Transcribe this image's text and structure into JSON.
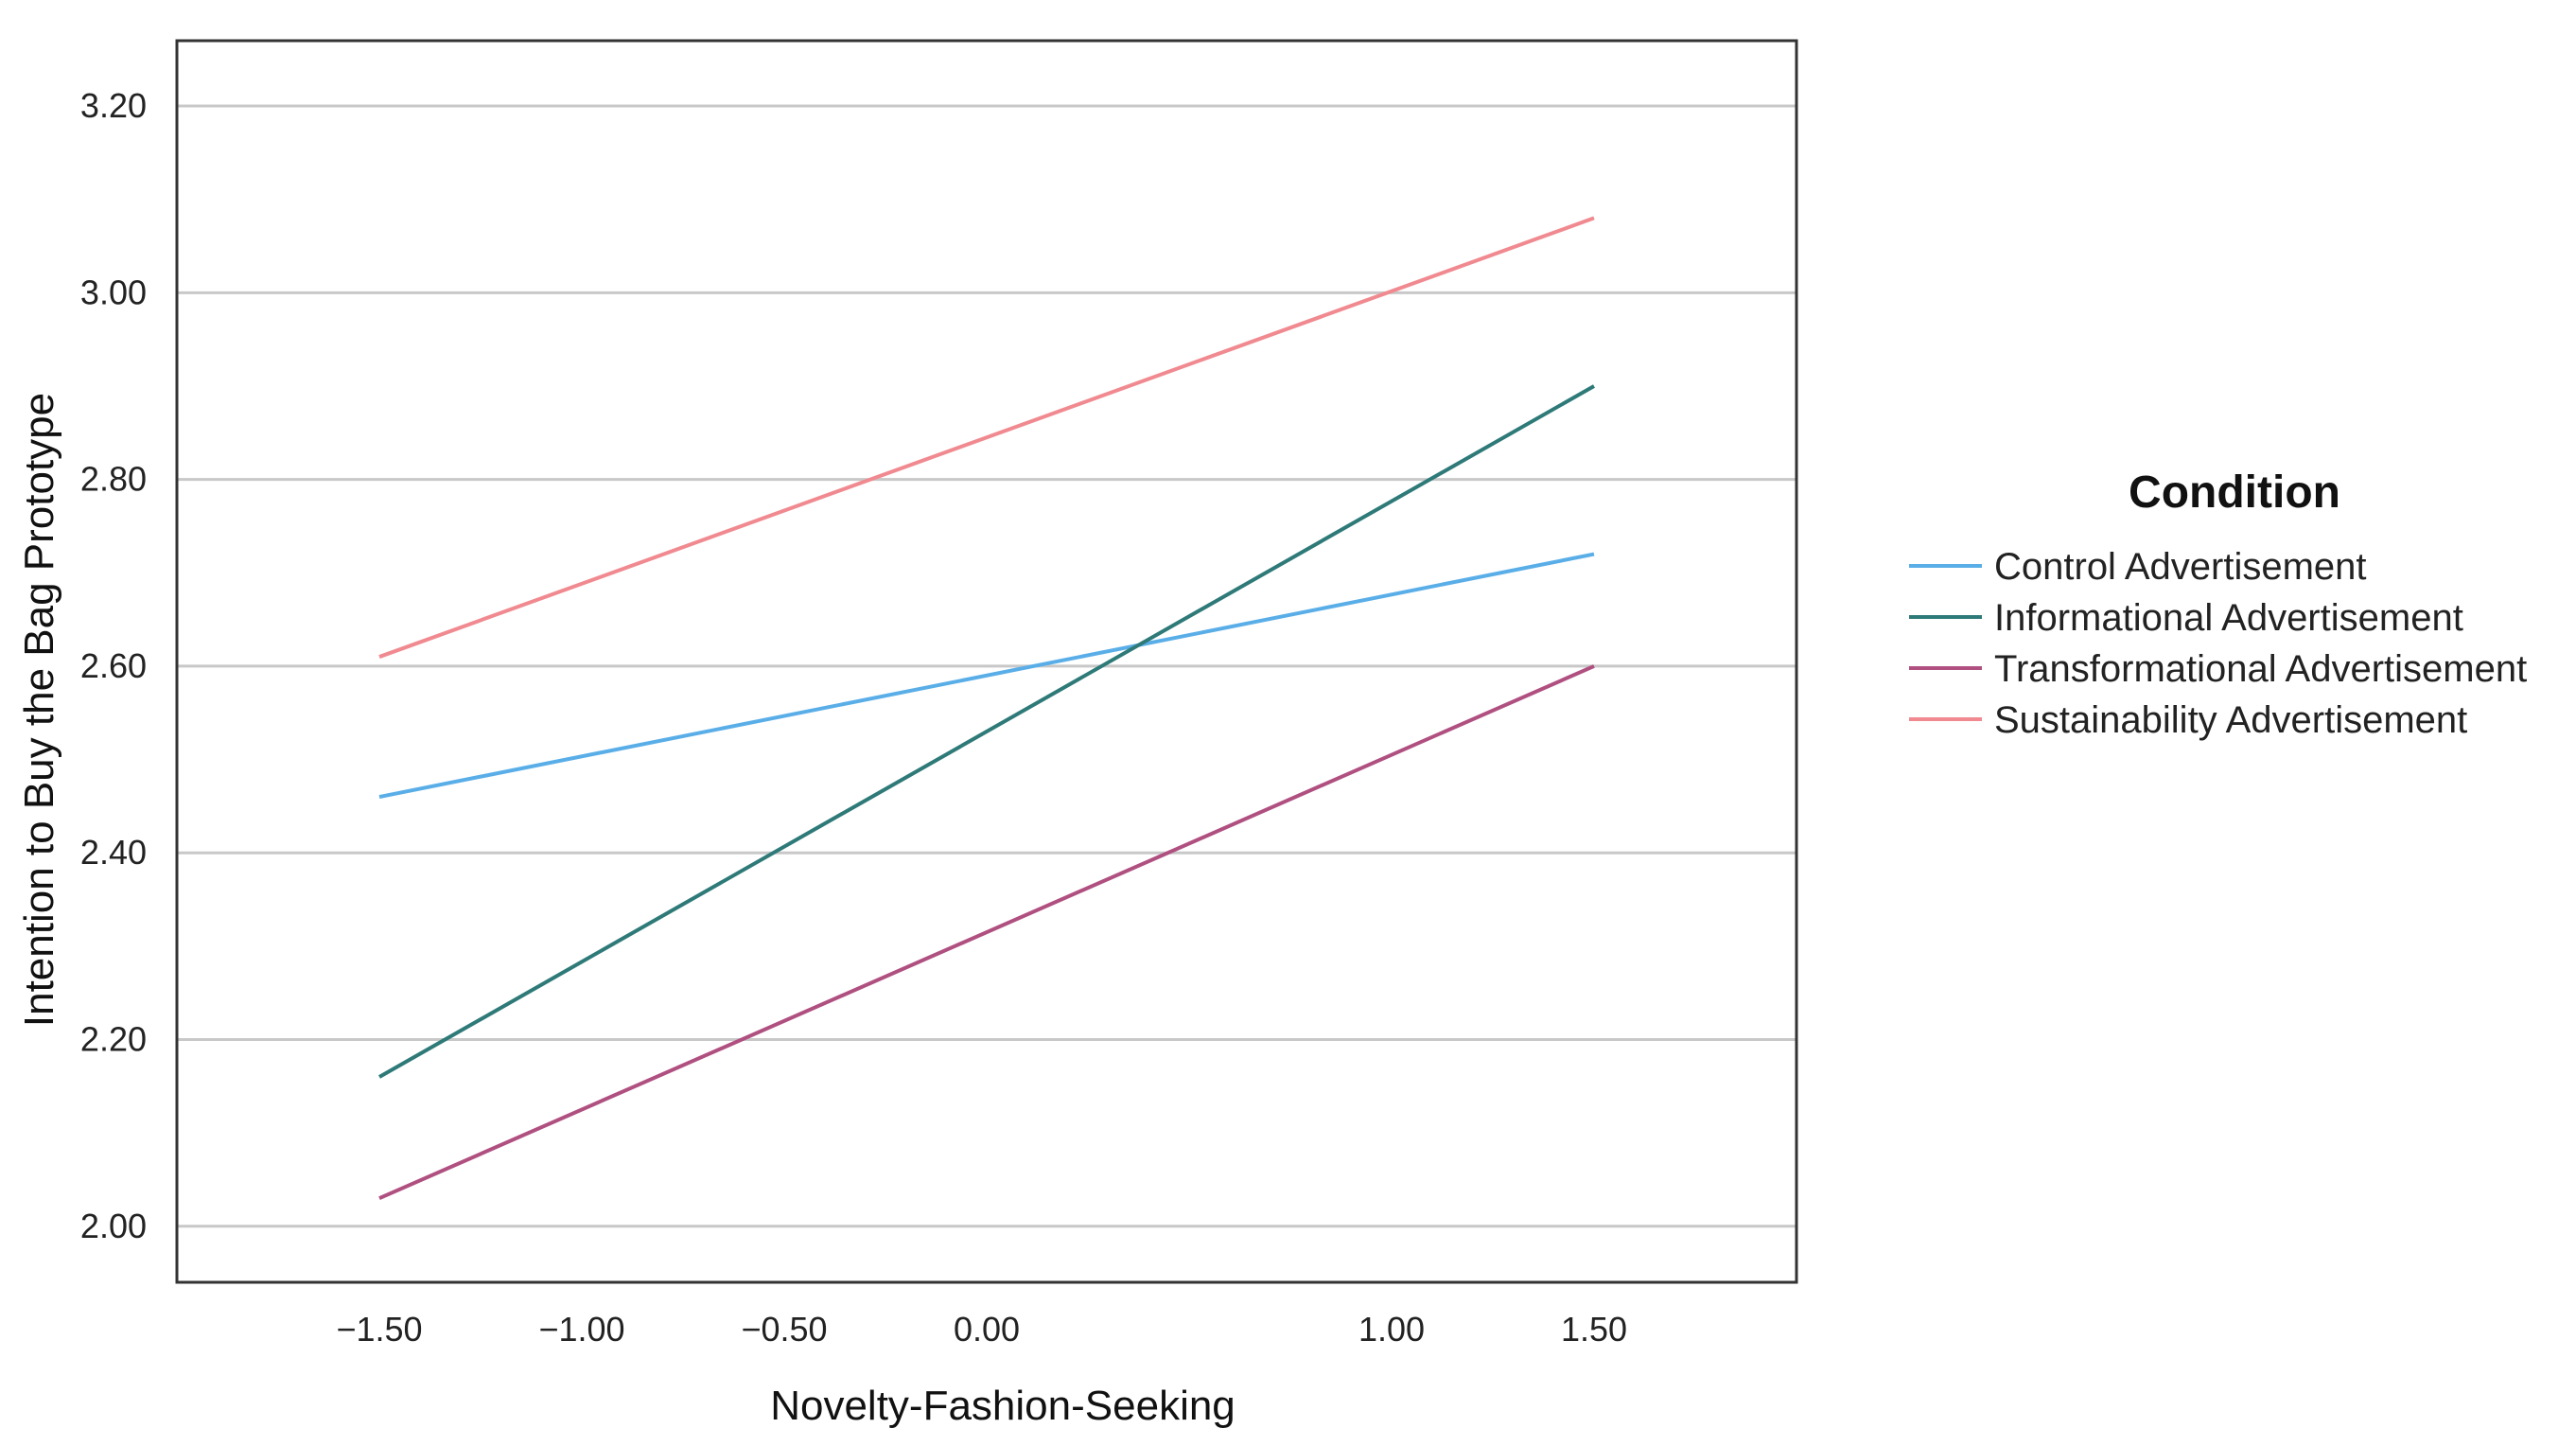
{
  "chart_data": {
    "type": "line",
    "xlabel": "Novelty-Fashion-Seeking",
    "ylabel": "Intention to Buy the Bag Prototype",
    "x": [
      -1.5,
      1.5
    ],
    "xticks": [
      -1.5,
      -1.0,
      -0.5,
      0.0,
      1.0,
      1.5
    ],
    "xtick_labels": [
      "−1.50",
      "−1.00",
      "−0.50",
      "0.00",
      "1.00",
      "1.50"
    ],
    "yticks": [
      2.0,
      2.2,
      2.4,
      2.6,
      2.8,
      3.0,
      3.2
    ],
    "ytick_labels": [
      "2.00",
      "2.20",
      "2.40",
      "2.60",
      "2.80",
      "3.00",
      "3.20"
    ],
    "xlim": [
      -2.0,
      2.0
    ],
    "ylim": [
      1.94,
      3.27
    ],
    "grid": true,
    "legend": {
      "title": "Condition",
      "placement": "right"
    },
    "series": [
      {
        "name": "Control Advertisement",
        "color": "#5aaee8",
        "values": [
          2.46,
          2.72
        ]
      },
      {
        "name": "Informational Advertisement",
        "color": "#2e7a78",
        "values": [
          2.16,
          2.9
        ]
      },
      {
        "name": "Transformational Advertisement",
        "color": "#b05080",
        "values": [
          2.03,
          2.6
        ]
      },
      {
        "name": "Sustainability Advertisement",
        "color": "#f08a90",
        "values": [
          2.61,
          3.08
        ]
      }
    ]
  }
}
